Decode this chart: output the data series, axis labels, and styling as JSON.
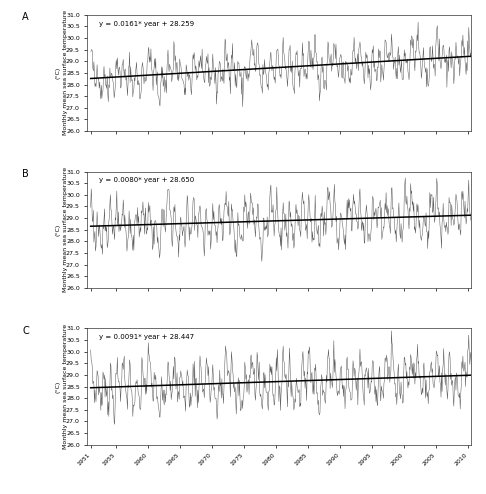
{
  "panels": [
    {
      "label": "A",
      "equation": "y = 0.0161* year + 28.259",
      "slope": 0.0161,
      "intercept": 28.259,
      "ylim": [
        26.0,
        31.0
      ],
      "yticks": [
        26.0,
        26.5,
        27.0,
        27.5,
        28.0,
        28.5,
        29.0,
        29.5,
        30.0,
        30.5,
        31.0
      ],
      "amp": 0.85,
      "noise_std": 0.28,
      "enso_amp": 0.32,
      "seed": 42
    },
    {
      "label": "B",
      "equation": "y = 0.0080* year + 28.650",
      "slope": 0.008,
      "intercept": 28.65,
      "ylim": [
        26.0,
        31.0
      ],
      "yticks": [
        26.0,
        26.5,
        27.0,
        27.5,
        28.0,
        28.5,
        29.0,
        29.5,
        30.0,
        30.5,
        31.0
      ],
      "amp": 1.0,
      "noise_std": 0.3,
      "enso_amp": 0.38,
      "seed": 123
    },
    {
      "label": "C",
      "equation": "y = 0.0091* year + 28.447",
      "slope": 0.0091,
      "intercept": 28.447,
      "ylim": [
        26.0,
        31.0
      ],
      "yticks": [
        26.0,
        26.5,
        27.0,
        27.5,
        28.0,
        28.5,
        29.0,
        29.5,
        30.0,
        30.5,
        31.0
      ],
      "amp": 1.05,
      "noise_std": 0.32,
      "enso_amp": 0.4,
      "seed": 7
    }
  ],
  "start_year": 1951,
  "end_year": 2010,
  "n_months": 720,
  "xtick_years": [
    1951,
    1955,
    1960,
    1965,
    1970,
    1975,
    1980,
    1985,
    1990,
    1995,
    2000,
    2005,
    2010
  ],
  "ylabel": "Monthly mean sea surface temperature",
  "ylabel_unit": "(°C)",
  "line_color": "#444444",
  "trend_color": "#000000",
  "background_color": "#ffffff"
}
